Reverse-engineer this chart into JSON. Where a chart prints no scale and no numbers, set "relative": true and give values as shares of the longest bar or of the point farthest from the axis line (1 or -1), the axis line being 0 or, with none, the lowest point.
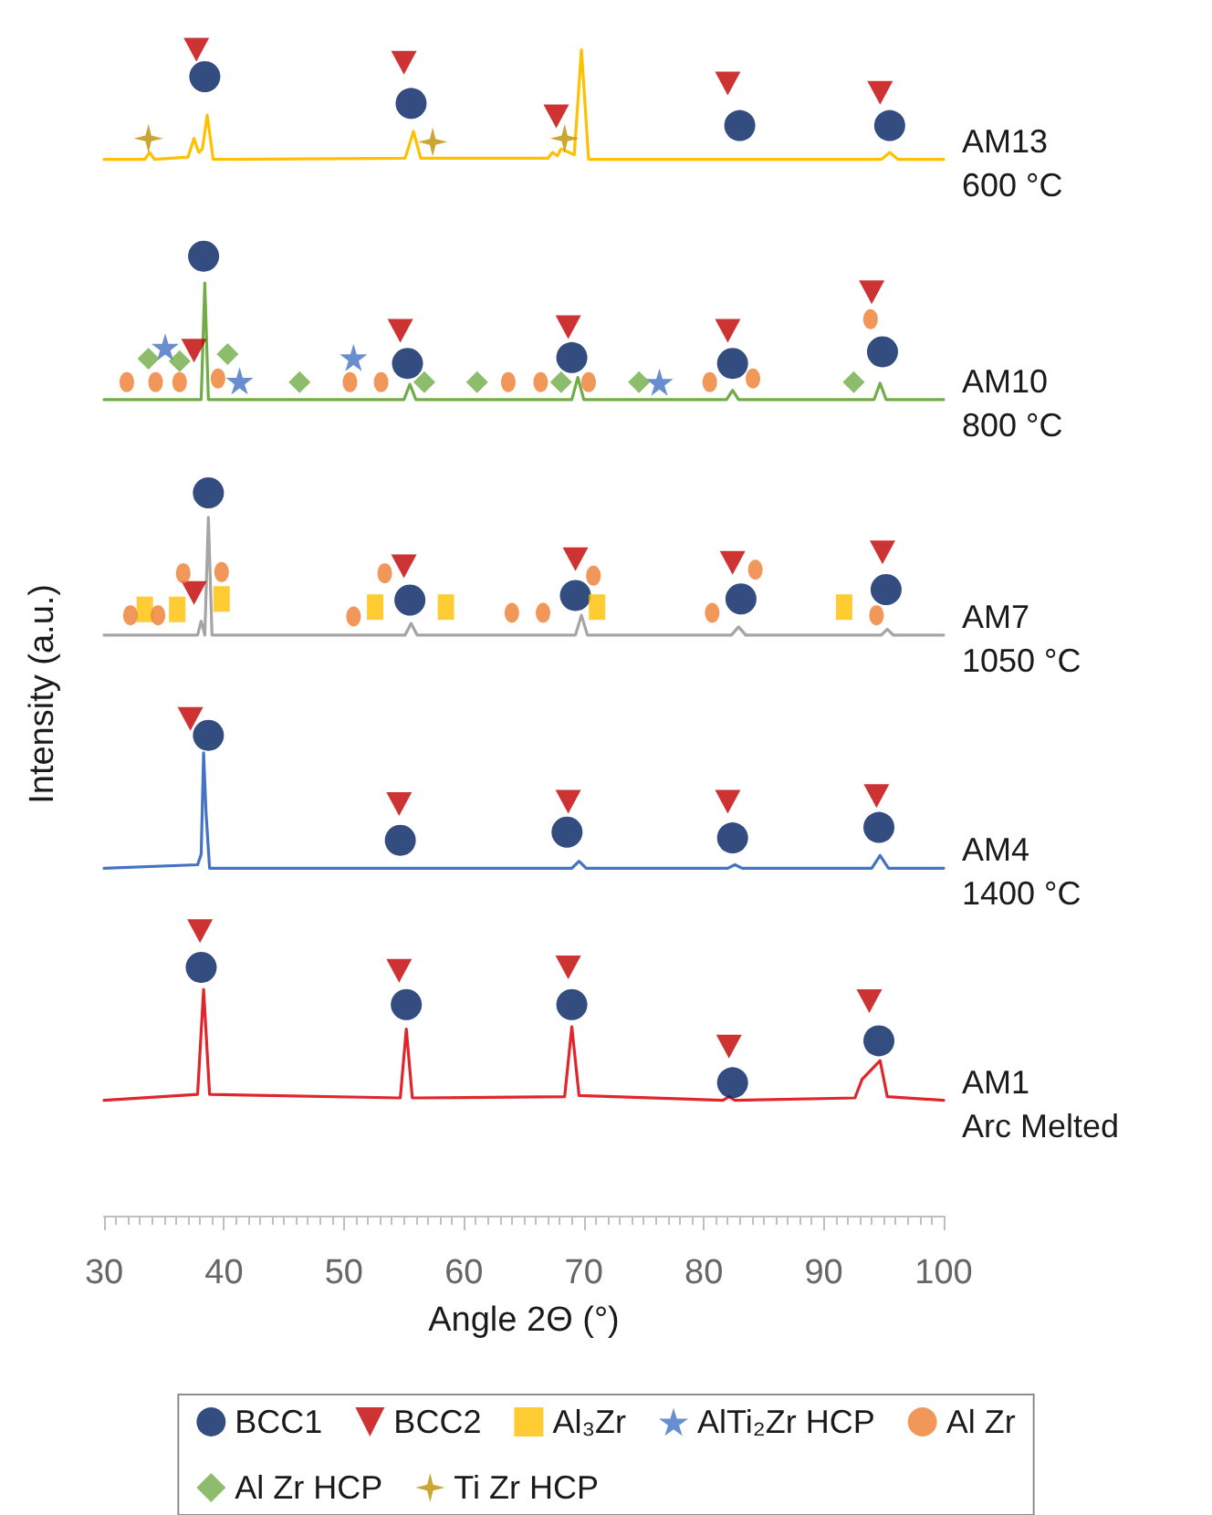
{
  "chart_data": {
    "type": "line",
    "relative": true,
    "xlabel": "Angle 2Θ (°)",
    "ylabel": "Intensity (a.u.)",
    "xlim": [
      30,
      100
    ],
    "xticks": [
      30,
      40,
      50,
      60,
      70,
      80,
      90,
      100
    ],
    "tick_labels": "x",
    "grid": false,
    "legend": "bottom",
    "marker": "none",
    "line_style": "solid",
    "series": [
      {
        "name": "AM13\n600 °C",
        "color": "#ffc000",
        "x": [
          30,
          33.4,
          33.8,
          34.2,
          37.0,
          37.5,
          37.9,
          38.2,
          38.6,
          39.1,
          55.1,
          55.8,
          56.4,
          67.0,
          67.4,
          67.8,
          68.1,
          69.2,
          69.8,
          70.4,
          94.8,
          95.5,
          96.2,
          100
        ],
        "values": [
          0.906,
          0.906,
          0.912,
          0.906,
          0.908,
          0.924,
          0.912,
          0.915,
          0.944,
          0.906,
          0.907,
          0.93,
          0.907,
          0.907,
          0.912,
          0.909,
          0.915,
          0.91,
          1,
          0.906,
          0.906,
          0.912,
          0.906,
          0.906
        ]
      },
      {
        "name": "AM10\n800 °C",
        "color": "#70ad47",
        "x": [
          30,
          38.1,
          38.4,
          38.7,
          55.0,
          55.5,
          56.0,
          69.0,
          69.5,
          70.0,
          81.9,
          82.4,
          82.9,
          94.2,
          94.7,
          95.2,
          100
        ],
        "values": [
          0.7,
          0.7,
          0.8,
          0.7,
          0.7,
          0.713,
          0.7,
          0.7,
          0.719,
          0.7,
          0.7,
          0.708,
          0.7,
          0.7,
          0.714,
          0.7,
          0.7
        ]
      },
      {
        "name": "AM7\n1050 °C",
        "color": "#a5a5a5",
        "x": [
          30,
          37.8,
          38.1,
          38.4,
          38.7,
          39.0,
          55.1,
          55.6,
          56.1,
          69.3,
          69.8,
          70.3,
          82.3,
          82.9,
          83.5,
          94.8,
          95.3,
          95.8,
          100
        ],
        "values": [
          0.498,
          0.498,
          0.51,
          0.498,
          0.599,
          0.498,
          0.498,
          0.508,
          0.498,
          0.498,
          0.515,
          0.498,
          0.498,
          0.505,
          0.498,
          0.498,
          0.503,
          0.498,
          0.498
        ]
      },
      {
        "name": "AM4\n1400 °C",
        "color": "#4472c4",
        "x": [
          30,
          37.8,
          38.1,
          38.3,
          38.5,
          38.8,
          69.0,
          69.6,
          70.2,
          82.0,
          82.6,
          83.2,
          94.0,
          94.7,
          95.4,
          100
        ],
        "values": [
          0.298,
          0.301,
          0.31,
          0.397,
          0.346,
          0.298,
          0.298,
          0.304,
          0.298,
          0.298,
          0.301,
          0.298,
          0.298,
          0.309,
          0.298,
          0.298
        ]
      },
      {
        "name": "AM1\nArc Melted",
        "color": "#e0262b",
        "x": [
          30,
          37.8,
          38.3,
          38.8,
          54.7,
          55.2,
          55.7,
          68.4,
          69.0,
          69.6,
          81.6,
          82.1,
          82.6,
          92.6,
          93.2,
          94.7,
          95.3,
          100
        ],
        "values": [
          0.099,
          0.104,
          0.194,
          0.104,
          0.101,
          0.16,
          0.101,
          0.102,
          0.162,
          0.103,
          0.099,
          0.102,
          0.099,
          0.101,
          0.117,
          0.133,
          0.102,
          0.099
        ]
      },
      {
        "name": "BCC1",
        "type": "scatter",
        "marker": "circle",
        "color": "#002060",
        "x": [
          38.4,
          55.6,
          83.0,
          95.5,
          38.3,
          55.3,
          69.0,
          82.4,
          94.9,
          38.7,
          55.5,
          69.3,
          83.1,
          95.2,
          38.7,
          54.7,
          68.6,
          82.4,
          94.6,
          38.1,
          55.2,
          69.0,
          82.4,
          94.6
        ],
        "values": [
          0.977,
          0.954,
          0.935,
          0.935,
          0.823,
          0.731,
          0.736,
          0.731,
          0.741,
          0.62,
          0.528,
          0.532,
          0.529,
          0.537,
          0.412,
          0.322,
          0.329,
          0.324,
          0.333,
          0.213,
          0.181,
          0.181,
          0.114,
          0.15
        ]
      },
      {
        "name": "BCC2",
        "type": "scatter",
        "marker": "triangle",
        "color": "#c00000",
        "x": [
          37.7,
          55.0,
          67.7,
          82.0,
          94.7,
          37.5,
          54.7,
          68.7,
          82.0,
          94.0,
          37.5,
          55.0,
          69.3,
          82.4,
          94.9,
          37.2,
          54.6,
          68.7,
          82.0,
          94.4,
          38.0,
          54.6,
          68.7,
          82.1,
          93.8
        ],
        "values": [
          1,
          0.989,
          0.943,
          0.971,
          0.963,
          0.742,
          0.759,
          0.762,
          0.759,
          0.792,
          0.534,
          0.557,
          0.563,
          0.56,
          0.569,
          0.426,
          0.353,
          0.355,
          0.355,
          0.36,
          0.244,
          0.21,
          0.213,
          0.145,
          0.184
        ]
      },
      {
        "name": "Al₃Zr",
        "type": "scatter",
        "marker": "square",
        "color": "#ffc000",
        "x": [
          33.4,
          36.1,
          39.8,
          52.6,
          58.5,
          71.1,
          91.7
        ],
        "values": [
          0.52,
          0.52,
          0.529,
          0.522,
          0.522,
          0.522,
          0.522
        ]
      },
      {
        "name": "AlTi₂Zr HCP",
        "type": "scatter",
        "marker": "star",
        "color": "#4472c4",
        "x": [
          35.1,
          41.3,
          50.8,
          76.3
        ],
        "values": [
          0.745,
          0.716,
          0.736,
          0.715
        ]
      },
      {
        "name": "Al Zr",
        "type": "scatter",
        "marker": "circle",
        "color": "#ed7d31",
        "x": [
          31.9,
          34.3,
          36.3,
          39.5,
          50.5,
          53.1,
          63.7,
          66.4,
          70.4,
          80.5,
          84.1,
          93.9,
          32.2,
          34.5,
          36.6,
          39.8,
          50.8,
          53.4,
          64.0,
          66.6,
          70.8,
          80.7,
          84.3,
          94.4
        ],
        "values": [
          0.715,
          0.715,
          0.715,
          0.718,
          0.715,
          0.715,
          0.715,
          0.715,
          0.715,
          0.715,
          0.718,
          0.769,
          0.515,
          0.515,
          0.551,
          0.552,
          0.514,
          0.551,
          0.517,
          0.517,
          0.549,
          0.517,
          0.554,
          0.515
        ]
      },
      {
        "name": "Al Zr HCP",
        "type": "scatter",
        "marker": "diamond",
        "color": "#70ad47",
        "x": [
          33.7,
          36.3,
          40.3,
          46.3,
          56.7,
          61.1,
          68.1,
          74.6,
          92.5
        ],
        "values": [
          0.735,
          0.733,
          0.739,
          0.715,
          0.715,
          0.715,
          0.715,
          0.715,
          0.715
        ]
      },
      {
        "name": "Ti Zr HCP",
        "type": "scatter",
        "marker": "cross",
        "color": "#bf9000",
        "x": [
          33.7,
          57.4,
          68.4
        ],
        "values": [
          0.924,
          0.921,
          0.924
        ]
      }
    ]
  }
}
